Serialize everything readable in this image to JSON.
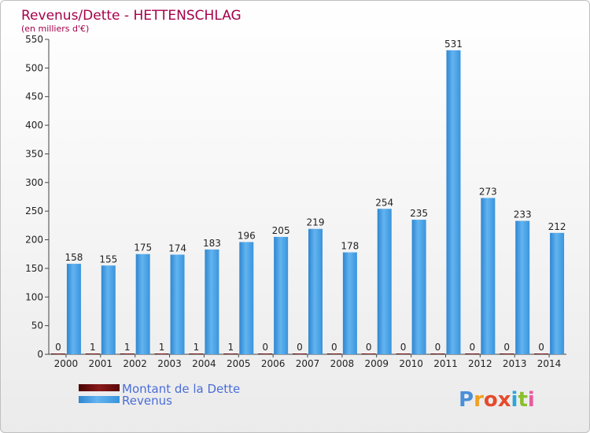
{
  "chart_data": {
    "type": "bar",
    "title": "Revenus/Dette - HETTENSCHLAG",
    "subtitle": "(en milliers d'€)",
    "categories": [
      "2000",
      "2001",
      "2002",
      "2003",
      "2004",
      "2005",
      "2006",
      "2007",
      "2008",
      "2009",
      "2010",
      "2011",
      "2012",
      "2013",
      "2014"
    ],
    "series": [
      {
        "name": "Montant de la Dette",
        "color": "#6b0a0a",
        "values": [
          0,
          1,
          1,
          1,
          1,
          1,
          0,
          0,
          0,
          0,
          0,
          0,
          0,
          0,
          0
        ]
      },
      {
        "name": "Revenus",
        "color": "#3d9ae2",
        "values": [
          158,
          155,
          175,
          174,
          183,
          196,
          205,
          219,
          178,
          254,
          235,
          531,
          273,
          233,
          212
        ]
      }
    ],
    "yticks": [
      0,
      50,
      100,
      150,
      200,
      250,
      300,
      350,
      400,
      450,
      500,
      550
    ],
    "ylim": [
      0,
      550
    ],
    "grid": false,
    "legend": "bottom-left"
  },
  "brand": {
    "letters": [
      "P",
      "r",
      "o",
      "x",
      "i",
      "t",
      "i"
    ],
    "colors": [
      "#4a8fd8",
      "#f0a020",
      "#e54b2c",
      "#e54b2c",
      "#2aa6dc",
      "#8bbf2b",
      "#e85a9c"
    ]
  }
}
